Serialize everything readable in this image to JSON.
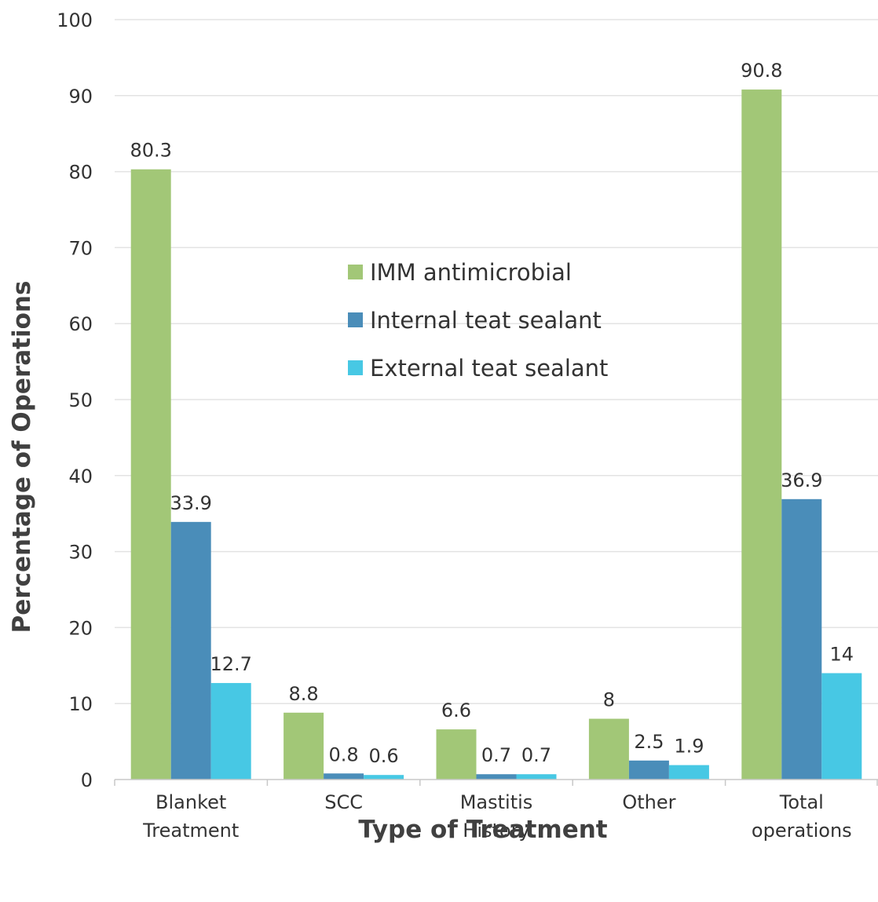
{
  "chart_data": {
    "type": "bar",
    "categories": [
      [
        "Blanket",
        "Treatment"
      ],
      [
        "SCC"
      ],
      [
        "Mastitis",
        "History"
      ],
      [
        "Other"
      ],
      [
        "Total",
        "operations"
      ]
    ],
    "series": [
      {
        "name": "IMM antimicrobial",
        "color": "#a2c777",
        "values": [
          80.3,
          8.8,
          6.6,
          8,
          90.8
        ],
        "labels": [
          "80.3",
          "8.8",
          "6.6",
          "8",
          "90.8"
        ]
      },
      {
        "name": "Internal teat sealant",
        "color": "#4a8db9",
        "values": [
          33.9,
          0.8,
          0.7,
          2.5,
          36.9
        ],
        "labels": [
          "33.9",
          "0.8",
          "0.7",
          "2.5",
          "36.9"
        ]
      },
      {
        "name": "External teat sealant",
        "color": "#47c8e4",
        "values": [
          12.7,
          0.6,
          0.7,
          1.9,
          14
        ],
        "labels": [
          "12.7",
          "0.6",
          "0.7",
          "1.9",
          "14"
        ]
      }
    ],
    "xlabel": "Type of Treatment",
    "ylabel": "Percentage of Operations",
    "ylim": [
      0,
      100
    ],
    "yticks": [
      0,
      10,
      20,
      30,
      40,
      50,
      60,
      70,
      80,
      90,
      100
    ],
    "grid": true,
    "legend_position": "center",
    "gridline_color": "#e3e3e3",
    "axis_color": "#c8c8c8"
  }
}
